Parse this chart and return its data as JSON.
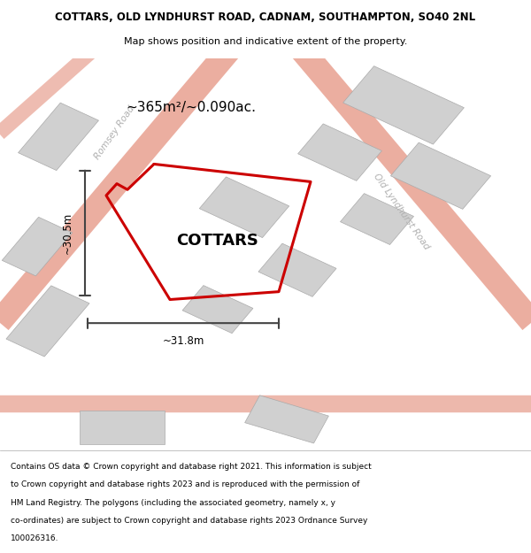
{
  "title_line1": "COTTARS, OLD LYNDHURST ROAD, CADNAM, SOUTHAMPTON, SO40 2NL",
  "title_line2": "Map shows position and indicative extent of the property.",
  "property_label": "COTTARS",
  "area_label": "~365m²/~0.090ac.",
  "dim_vertical": "~30.5m",
  "dim_horizontal": "~31.8m",
  "road_label_left": "Romsey Road",
  "road_label_right": "Old Lyndhurst Road",
  "footer_lines": [
    "Contains OS data © Crown copyright and database right 2021. This information is subject",
    "to Crown copyright and database rights 2023 and is reproduced with the permission of",
    "HM Land Registry. The polygons (including the associated geometry, namely x, y",
    "co-ordinates) are subject to Crown copyright and database rights 2023 Ordnance Survey",
    "100026316."
  ],
  "map_bg": "#f5f5f5",
  "road_color": "#e8a090",
  "building_color": "#d0d0d0",
  "building_edge": "#aaaaaa",
  "property_outline_color": "#cc0000",
  "dimension_color": "#444444",
  "road_label_color": "#b0b0b0",
  "header_bg": "#ffffff",
  "footer_bg": "#ffffff"
}
